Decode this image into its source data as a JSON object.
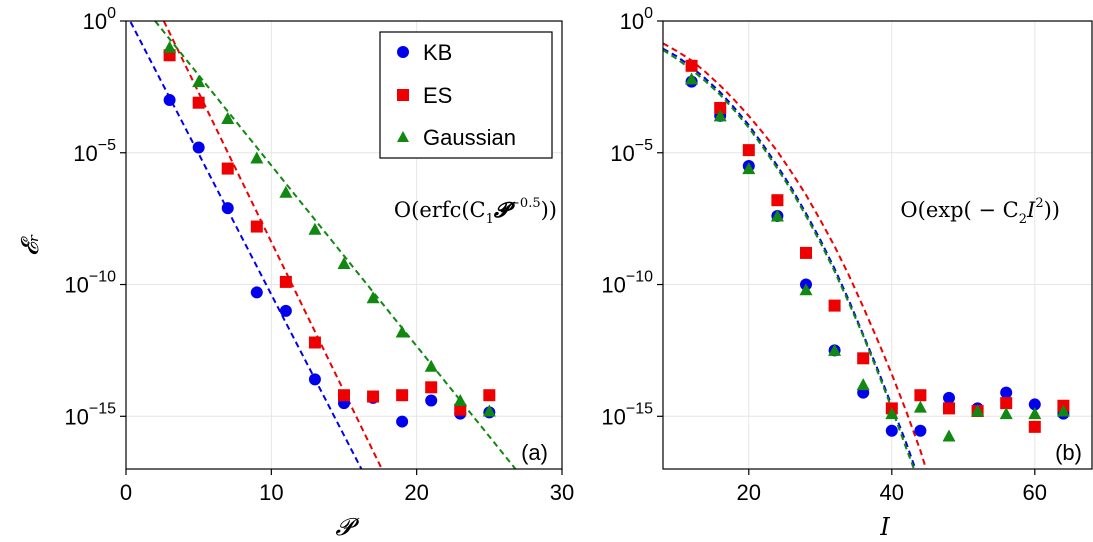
{
  "colors": {
    "KB": "#0000ee",
    "ES": "#ee0000",
    "Gaussian": "#118811"
  },
  "legend": {
    "placement": "top-right of left panel",
    "entries": [
      {
        "name": "KB",
        "marker": "circle",
        "color": "#0000ee"
      },
      {
        "name": "ES",
        "marker": "square",
        "color": "#ee0000"
      },
      {
        "name": "Gaussian",
        "marker": "triangle",
        "color": "#118811"
      }
    ]
  },
  "chart_data": [
    {
      "type": "scatter",
      "panel_label": "(a)",
      "xlabel": "𝓟",
      "ylabel": "𝓔ᵣ",
      "xlim": [
        0,
        30
      ],
      "ylim_log10": [
        -17,
        0
      ],
      "yscale": "log",
      "grid": true,
      "xticks": [
        {
          "v": 0,
          "label": "0"
        },
        {
          "v": 10,
          "label": "10"
        },
        {
          "v": 20,
          "label": "20"
        },
        {
          "v": 30,
          "label": "30"
        }
      ],
      "yticks": [
        {
          "e": 0,
          "mant": "10",
          "exp": "0"
        },
        {
          "e": -5,
          "mant": "10",
          "exp": "−5"
        },
        {
          "e": -10,
          "mant": "10",
          "exp": "−10"
        },
        {
          "e": -15,
          "mant": "10",
          "exp": "−15"
        }
      ],
      "annotation": {
        "prefix": "O(erfc(C",
        "sub": "1",
        "mid": "𝓟",
        "sup": "−0.5",
        "suffix": "))"
      },
      "series": [
        {
          "name": "KB",
          "x": [
            3,
            5,
            7,
            9,
            11,
            13,
            15,
            17,
            19,
            21,
            23,
            25
          ],
          "log10_y": [
            -3.0,
            -4.8,
            -7.1,
            -10.3,
            -11.0,
            -13.6,
            -14.5,
            -14.3,
            -15.2,
            -14.4,
            -14.9,
            -14.85
          ],
          "fit_log10": [
            [
              0,
              0.3
            ],
            [
              16.2,
              -17.0
            ]
          ]
        },
        {
          "name": "ES",
          "x": [
            3,
            5,
            7,
            9,
            11,
            13,
            15,
            17,
            19,
            21,
            23,
            25
          ],
          "log10_y": [
            -1.3,
            -3.1,
            -5.6,
            -7.8,
            -9.9,
            -12.2,
            -14.2,
            -14.25,
            -14.2,
            -13.9,
            -14.75,
            -14.2
          ],
          "fit_log10": [
            [
              2.6,
              0.0
            ],
            [
              17.6,
              -17.0
            ]
          ]
        },
        {
          "name": "Gaussian",
          "x": [
            3,
            5,
            7,
            9,
            11,
            13,
            15,
            17,
            19,
            21,
            23,
            25
          ],
          "log10_y": [
            -1.0,
            -2.3,
            -3.7,
            -5.2,
            -6.5,
            -7.9,
            -9.2,
            -10.5,
            -11.8,
            -13.1,
            -14.4,
            -14.8
          ],
          "fit_log10": [
            [
              2.0,
              0.0
            ],
            [
              26.8,
              -17.0
            ]
          ]
        }
      ]
    },
    {
      "type": "scatter",
      "panel_label": "(b)",
      "xlabel": "I",
      "ylabel": "",
      "xlim": [
        8,
        68
      ],
      "ylim_log10": [
        -17,
        0
      ],
      "yscale": "log",
      "grid": true,
      "xticks": [
        {
          "v": 20,
          "label": "20"
        },
        {
          "v": 40,
          "label": "40"
        },
        {
          "v": 60,
          "label": "60"
        }
      ],
      "yticks": [
        {
          "e": 0,
          "mant": "10",
          "exp": "0"
        },
        {
          "e": -5,
          "mant": "10",
          "exp": "−5"
        },
        {
          "e": -10,
          "mant": "10",
          "exp": "−10"
        },
        {
          "e": -15,
          "mant": "10",
          "exp": "−15"
        }
      ],
      "annotation": {
        "prefix": "O(exp( − C",
        "sub": "2",
        "mid": "I",
        "sup": "2",
        "suffix": "))"
      },
      "series": [
        {
          "name": "KB",
          "x": [
            12,
            16,
            20,
            24,
            28,
            32,
            36,
            40,
            44,
            48,
            52,
            56,
            60,
            64
          ],
          "log10_y": [
            -2.3,
            -3.6,
            -5.5,
            -7.4,
            -10.0,
            -12.5,
            -14.1,
            -15.55,
            -15.55,
            -14.3,
            -14.7,
            -14.1,
            -14.55,
            -14.9
          ],
          "fit_log10": [
            [
              8,
              -1.05
            ],
            [
              10,
              -1.35
            ],
            [
              12,
              -1.75
            ],
            [
              14,
              -2.2
            ],
            [
              16,
              -2.7
            ],
            [
              18,
              -3.3
            ],
            [
              20,
              -3.95
            ],
            [
              22,
              -4.7
            ],
            [
              24,
              -5.5
            ],
            [
              26,
              -6.35
            ],
            [
              28,
              -7.3
            ],
            [
              30,
              -8.3
            ],
            [
              32,
              -9.4
            ],
            [
              34,
              -10.6
            ],
            [
              36,
              -11.9
            ],
            [
              38,
              -13.2
            ],
            [
              40,
              -14.6
            ],
            [
              42,
              -16.0
            ],
            [
              43.3,
              -17.0
            ]
          ]
        },
        {
          "name": "ES",
          "x": [
            12,
            16,
            20,
            24,
            28,
            32,
            36,
            40,
            44,
            48,
            52,
            56,
            60,
            64
          ],
          "log10_y": [
            -1.7,
            -3.3,
            -4.9,
            -6.8,
            -8.8,
            -10.8,
            -12.8,
            -14.7,
            -14.2,
            -14.7,
            -14.8,
            -14.5,
            -15.4,
            -14.6
          ],
          "fit_log10": [
            [
              8,
              -0.85
            ],
            [
              10,
              -1.15
            ],
            [
              12,
              -1.5
            ],
            [
              14,
              -1.95
            ],
            [
              16,
              -2.45
            ],
            [
              18,
              -3.0
            ],
            [
              20,
              -3.6
            ],
            [
              22,
              -4.25
            ],
            [
              24,
              -4.95
            ],
            [
              26,
              -5.75
            ],
            [
              28,
              -6.6
            ],
            [
              30,
              -7.55
            ],
            [
              32,
              -8.55
            ],
            [
              34,
              -9.65
            ],
            [
              36,
              -10.85
            ],
            [
              38,
              -12.1
            ],
            [
              40,
              -13.4
            ],
            [
              42,
              -14.8
            ],
            [
              44,
              -16.3
            ],
            [
              44.8,
              -17.0
            ]
          ]
        },
        {
          "name": "Gaussian",
          "x": [
            12,
            16,
            20,
            24,
            28,
            32,
            36,
            40,
            44,
            48,
            52,
            56,
            60,
            64
          ],
          "log10_y": [
            -2.2,
            -3.6,
            -5.6,
            -7.4,
            -10.2,
            -12.5,
            -13.8,
            -14.9,
            -14.65,
            -15.75,
            -14.8,
            -14.9,
            -14.9,
            -14.8
          ],
          "fit_log10": [
            [
              8,
              -1.1
            ],
            [
              10,
              -1.45
            ],
            [
              12,
              -1.85
            ],
            [
              14,
              -2.3
            ],
            [
              16,
              -2.8
            ],
            [
              18,
              -3.4
            ],
            [
              20,
              -4.05
            ],
            [
              22,
              -4.8
            ],
            [
              24,
              -5.6
            ],
            [
              26,
              -6.45
            ],
            [
              28,
              -7.4
            ],
            [
              30,
              -8.4
            ],
            [
              32,
              -9.5
            ],
            [
              34,
              -10.7
            ],
            [
              36,
              -11.95
            ],
            [
              38,
              -13.3
            ],
            [
              40,
              -14.7
            ],
            [
              42,
              -16.2
            ],
            [
              43.1,
              -17.0
            ]
          ]
        }
      ]
    }
  ]
}
